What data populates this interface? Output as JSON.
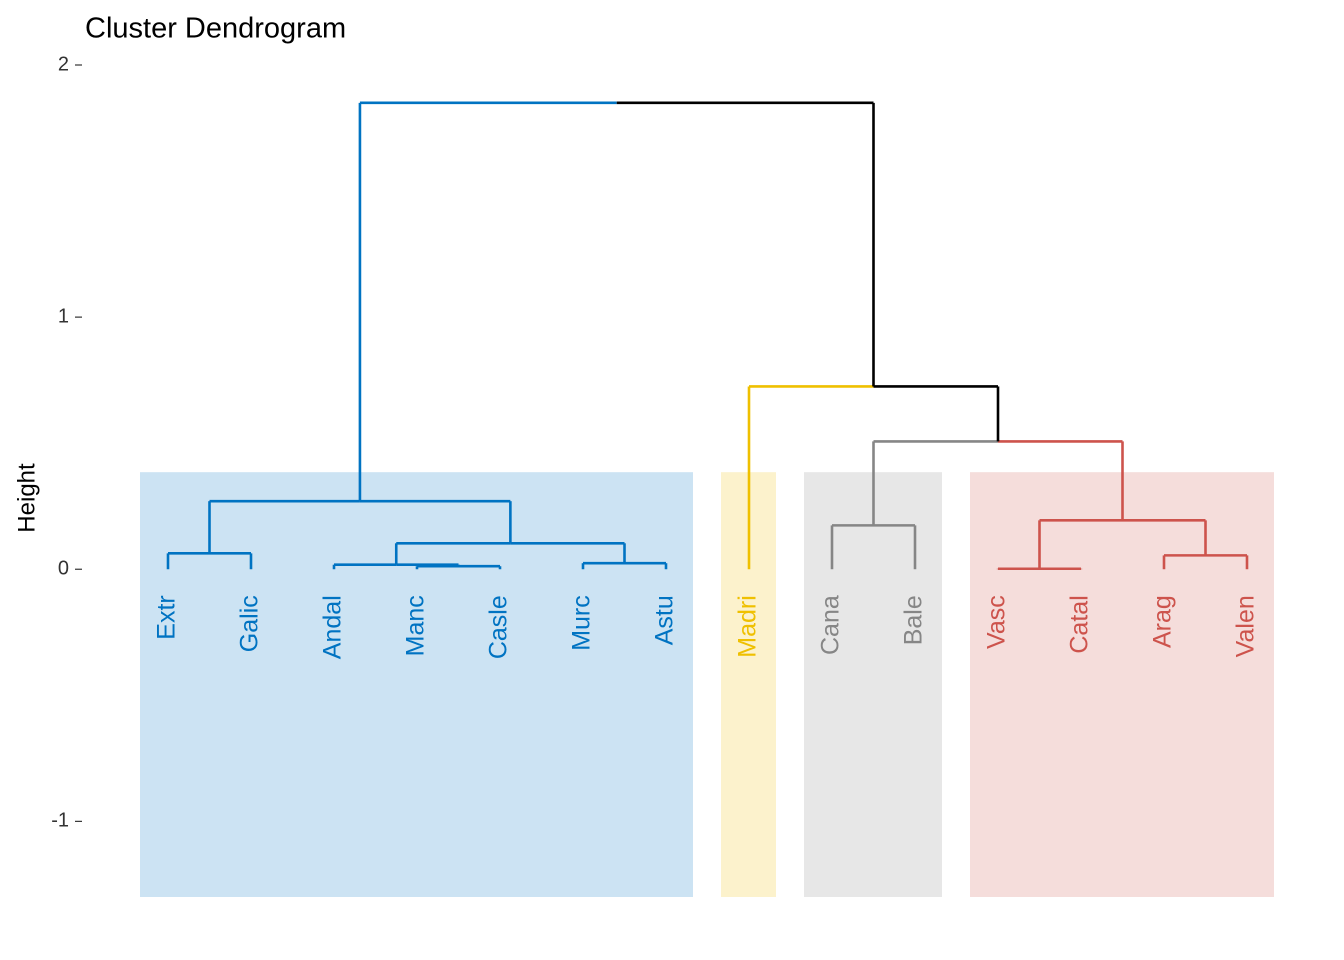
{
  "chart_data": {
    "type": "dendrogram",
    "title": "Cluster Dendrogram",
    "y_label": "Height",
    "ylim": [
      -1.3,
      2
    ],
    "yticks": [
      -1,
      0,
      1,
      2
    ],
    "grid": false,
    "link_color": "#000000",
    "leaves": [
      "Extr",
      "Galic",
      "Andal",
      "Manc",
      "Casle",
      "Murc",
      "Astu",
      "Madri",
      "Cana",
      "Bale",
      "Vasc",
      "Catal",
      "Arag",
      "Valen"
    ],
    "merges": [
      {
        "children": [
          3,
          4
        ],
        "height": 0.012
      },
      {
        "children": [
          2,
          14
        ],
        "height": 0.018
      },
      {
        "children": [
          5,
          6
        ],
        "height": 0.024
      },
      {
        "children": [
          15,
          16
        ],
        "height": 0.103
      },
      {
        "children": [
          0,
          1
        ],
        "height": 0.063
      },
      {
        "children": [
          18,
          17
        ],
        "height": 0.27
      },
      {
        "children": [
          8,
          9
        ],
        "height": 0.174
      },
      {
        "children": [
          10,
          11
        ],
        "height": 0.002
      },
      {
        "children": [
          12,
          13
        ],
        "height": 0.055
      },
      {
        "children": [
          21,
          22
        ],
        "height": 0.194
      },
      {
        "children": [
          20,
          23
        ],
        "height": 0.507
      },
      {
        "children": [
          7,
          24
        ],
        "height": 0.725
      },
      {
        "children": [
          19,
          25
        ],
        "height": 1.85
      }
    ],
    "clusters": [
      {
        "leaves": [
          0,
          6
        ],
        "color": "#0073C2"
      },
      {
        "leaves": [
          7,
          7
        ],
        "color": "#EFC000"
      },
      {
        "leaves": [
          8,
          9
        ],
        "color": "#868686"
      },
      {
        "leaves": [
          10,
          13
        ],
        "color": "#CD534C"
      }
    ],
    "rect_top": 0.385
  }
}
